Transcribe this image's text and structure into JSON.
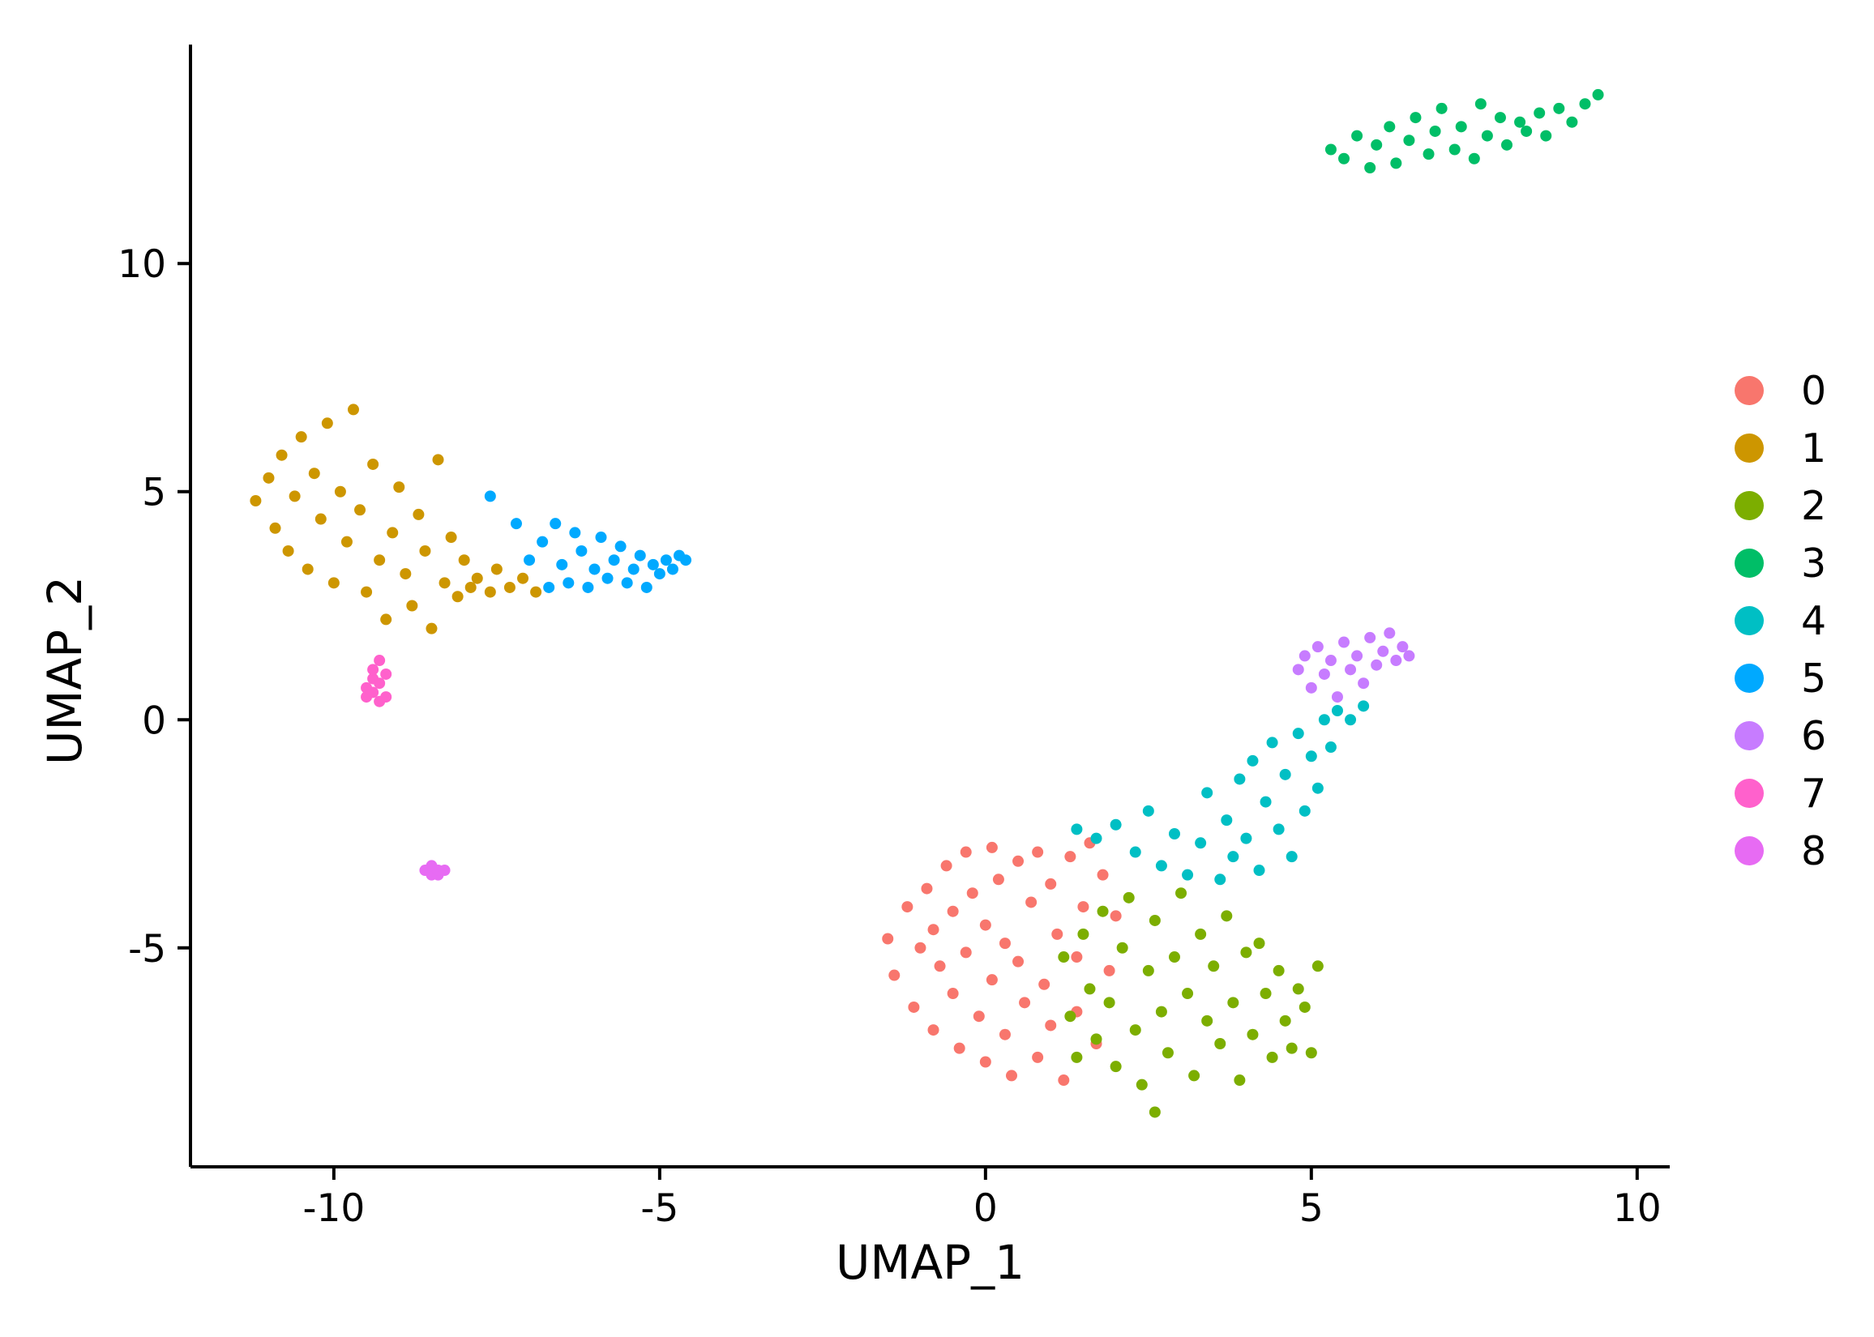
{
  "chart_data": {
    "type": "scatter",
    "title": "",
    "xlabel": "UMAP_1",
    "ylabel": "UMAP_2",
    "xlim": [
      -12.2,
      10.5
    ],
    "ylim": [
      -9.8,
      14.8
    ],
    "x_ticks": [
      -10,
      -5,
      0,
      5,
      10
    ],
    "y_ticks": [
      -5,
      0,
      5,
      10
    ],
    "x_tick_labels": [
      "-10",
      "-5",
      "0",
      "5",
      "10"
    ],
    "y_tick_labels": [
      "-5",
      "0",
      "5",
      "10"
    ],
    "grid": false,
    "legend_position": "right",
    "series": [
      {
        "name": "0",
        "color": "#F8766D",
        "points": [
          [
            -1.5,
            -4.8
          ],
          [
            -1.4,
            -5.6
          ],
          [
            -1.2,
            -4.1
          ],
          [
            -1.1,
            -6.3
          ],
          [
            -1.0,
            -5.0
          ],
          [
            -0.9,
            -3.7
          ],
          [
            -0.8,
            -4.6
          ],
          [
            -0.8,
            -6.8
          ],
          [
            -0.7,
            -5.4
          ],
          [
            -0.6,
            -3.2
          ],
          [
            -0.5,
            -4.2
          ],
          [
            -0.5,
            -6.0
          ],
          [
            -0.4,
            -7.2
          ],
          [
            -0.3,
            -2.9
          ],
          [
            -0.3,
            -5.1
          ],
          [
            -0.2,
            -3.8
          ],
          [
            -0.1,
            -6.5
          ],
          [
            0.0,
            -4.5
          ],
          [
            0.0,
            -7.5
          ],
          [
            0.1,
            -2.8
          ],
          [
            0.1,
            -5.7
          ],
          [
            0.2,
            -3.5
          ],
          [
            0.3,
            -6.9
          ],
          [
            0.3,
            -4.9
          ],
          [
            0.4,
            -7.8
          ],
          [
            0.5,
            -3.1
          ],
          [
            0.5,
            -5.3
          ],
          [
            0.6,
            -6.2
          ],
          [
            0.7,
            -4.0
          ],
          [
            0.8,
            -7.4
          ],
          [
            0.8,
            -2.9
          ],
          [
            0.9,
            -5.8
          ],
          [
            1.0,
            -3.6
          ],
          [
            1.0,
            -6.7
          ],
          [
            1.1,
            -4.7
          ],
          [
            1.2,
            -7.9
          ],
          [
            1.3,
            -3.0
          ],
          [
            1.4,
            -5.2
          ],
          [
            1.4,
            -6.4
          ],
          [
            1.5,
            -4.1
          ],
          [
            1.6,
            -2.7
          ],
          [
            1.7,
            -7.1
          ],
          [
            1.8,
            -3.4
          ],
          [
            1.9,
            -5.5
          ],
          [
            2.0,
            -4.3
          ]
        ]
      },
      {
        "name": "1",
        "color": "#CD9600",
        "points": [
          [
            -11.2,
            4.8
          ],
          [
            -11.0,
            5.3
          ],
          [
            -10.9,
            4.2
          ],
          [
            -10.8,
            5.8
          ],
          [
            -10.7,
            3.7
          ],
          [
            -10.6,
            4.9
          ],
          [
            -10.5,
            6.2
          ],
          [
            -10.4,
            3.3
          ],
          [
            -10.3,
            5.4
          ],
          [
            -10.2,
            4.4
          ],
          [
            -10.1,
            6.5
          ],
          [
            -10.0,
            3.0
          ],
          [
            -9.9,
            5.0
          ],
          [
            -9.8,
            3.9
          ],
          [
            -9.7,
            6.8
          ],
          [
            -9.6,
            4.6
          ],
          [
            -9.5,
            2.8
          ],
          [
            -9.4,
            5.6
          ],
          [
            -9.3,
            3.5
          ],
          [
            -9.2,
            2.2
          ],
          [
            -9.1,
            4.1
          ],
          [
            -9.0,
            5.1
          ],
          [
            -8.9,
            3.2
          ],
          [
            -8.8,
            2.5
          ],
          [
            -8.7,
            4.5
          ],
          [
            -8.6,
            3.7
          ],
          [
            -8.5,
            2.0
          ],
          [
            -8.4,
            5.7
          ],
          [
            -8.3,
            3.0
          ],
          [
            -8.2,
            4.0
          ],
          [
            -8.1,
            2.7
          ],
          [
            -8.0,
            3.5
          ],
          [
            -7.9,
            2.9
          ],
          [
            -7.8,
            3.1
          ],
          [
            -7.6,
            2.8
          ],
          [
            -7.5,
            3.3
          ],
          [
            -7.3,
            2.9
          ],
          [
            -7.1,
            3.1
          ],
          [
            -6.9,
            2.8
          ]
        ]
      },
      {
        "name": "2",
        "color": "#7CAE00",
        "points": [
          [
            1.2,
            -5.2
          ],
          [
            1.3,
            -6.5
          ],
          [
            1.4,
            -7.4
          ],
          [
            1.5,
            -4.7
          ],
          [
            1.6,
            -5.9
          ],
          [
            1.7,
            -7.0
          ],
          [
            1.8,
            -4.2
          ],
          [
            1.9,
            -6.2
          ],
          [
            2.0,
            -7.6
          ],
          [
            2.1,
            -5.0
          ],
          [
            2.2,
            -3.9
          ],
          [
            2.3,
            -6.8
          ],
          [
            2.4,
            -8.0
          ],
          [
            2.5,
            -5.5
          ],
          [
            2.6,
            -4.4
          ],
          [
            2.6,
            -8.6
          ],
          [
            2.7,
            -6.4
          ],
          [
            2.8,
            -7.3
          ],
          [
            2.9,
            -5.2
          ],
          [
            3.0,
            -3.8
          ],
          [
            3.1,
            -6.0
          ],
          [
            3.2,
            -7.8
          ],
          [
            3.3,
            -4.7
          ],
          [
            3.4,
            -6.6
          ],
          [
            3.5,
            -5.4
          ],
          [
            3.6,
            -7.1
          ],
          [
            3.7,
            -4.3
          ],
          [
            3.8,
            -6.2
          ],
          [
            3.9,
            -7.9
          ],
          [
            4.0,
            -5.1
          ],
          [
            4.1,
            -6.9
          ],
          [
            4.2,
            -4.9
          ],
          [
            4.3,
            -6.0
          ],
          [
            4.4,
            -7.4
          ],
          [
            4.5,
            -5.5
          ],
          [
            4.6,
            -6.6
          ],
          [
            4.7,
            -7.2
          ],
          [
            4.8,
            -5.9
          ],
          [
            4.9,
            -6.3
          ],
          [
            5.0,
            -7.3
          ],
          [
            5.1,
            -5.4
          ]
        ]
      },
      {
        "name": "3",
        "color": "#00BE67",
        "points": [
          [
            5.3,
            12.5
          ],
          [
            5.5,
            12.3
          ],
          [
            5.7,
            12.8
          ],
          [
            5.9,
            12.1
          ],
          [
            6.0,
            12.6
          ],
          [
            6.2,
            13.0
          ],
          [
            6.3,
            12.2
          ],
          [
            6.5,
            12.7
          ],
          [
            6.6,
            13.2
          ],
          [
            6.8,
            12.4
          ],
          [
            6.9,
            12.9
          ],
          [
            7.0,
            13.4
          ],
          [
            7.2,
            12.5
          ],
          [
            7.3,
            13.0
          ],
          [
            7.5,
            12.3
          ],
          [
            7.6,
            13.5
          ],
          [
            7.7,
            12.8
          ],
          [
            7.9,
            13.2
          ],
          [
            8.0,
            12.6
          ],
          [
            8.2,
            13.1
          ],
          [
            8.3,
            12.9
          ],
          [
            8.5,
            13.3
          ],
          [
            8.6,
            12.8
          ],
          [
            8.8,
            13.4
          ],
          [
            9.0,
            13.1
          ],
          [
            9.2,
            13.5
          ],
          [
            9.4,
            13.7
          ]
        ]
      },
      {
        "name": "4",
        "color": "#00BFC4",
        "points": [
          [
            1.4,
            -2.4
          ],
          [
            1.7,
            -2.6
          ],
          [
            2.0,
            -2.3
          ],
          [
            2.3,
            -2.9
          ],
          [
            2.5,
            -2.0
          ],
          [
            2.7,
            -3.2
          ],
          [
            2.9,
            -2.5
          ],
          [
            3.1,
            -3.4
          ],
          [
            3.3,
            -2.7
          ],
          [
            3.4,
            -1.6
          ],
          [
            3.6,
            -3.5
          ],
          [
            3.7,
            -2.2
          ],
          [
            3.8,
            -3.0
          ],
          [
            3.9,
            -1.3
          ],
          [
            4.0,
            -2.6
          ],
          [
            4.1,
            -0.9
          ],
          [
            4.2,
            -3.3
          ],
          [
            4.3,
            -1.8
          ],
          [
            4.4,
            -0.5
          ],
          [
            4.5,
            -2.4
          ],
          [
            4.6,
            -1.2
          ],
          [
            4.7,
            -3.0
          ],
          [
            4.8,
            -0.3
          ],
          [
            4.9,
            -2.0
          ],
          [
            5.0,
            -0.8
          ],
          [
            5.1,
            -1.5
          ],
          [
            5.2,
            0.0
          ],
          [
            5.3,
            -0.6
          ],
          [
            5.4,
            0.2
          ],
          [
            5.6,
            0.0
          ],
          [
            5.8,
            0.3
          ]
        ]
      },
      {
        "name": "5",
        "color": "#00A9FF",
        "points": [
          [
            -7.6,
            4.9
          ],
          [
            -7.2,
            4.3
          ],
          [
            -7.0,
            3.5
          ],
          [
            -6.8,
            3.9
          ],
          [
            -6.7,
            2.9
          ],
          [
            -6.6,
            4.3
          ],
          [
            -6.5,
            3.4
          ],
          [
            -6.4,
            3.0
          ],
          [
            -6.3,
            4.1
          ],
          [
            -6.2,
            3.7
          ],
          [
            -6.1,
            2.9
          ],
          [
            -6.0,
            3.3
          ],
          [
            -5.9,
            4.0
          ],
          [
            -5.8,
            3.1
          ],
          [
            -5.7,
            3.5
          ],
          [
            -5.6,
            3.8
          ],
          [
            -5.5,
            3.0
          ],
          [
            -5.4,
            3.3
          ],
          [
            -5.3,
            3.6
          ],
          [
            -5.2,
            2.9
          ],
          [
            -5.1,
            3.4
          ],
          [
            -5.0,
            3.2
          ],
          [
            -4.9,
            3.5
          ],
          [
            -4.8,
            3.3
          ],
          [
            -4.7,
            3.6
          ],
          [
            -4.6,
            3.5
          ]
        ]
      },
      {
        "name": "6",
        "color": "#C77CFF",
        "points": [
          [
            4.8,
            1.1
          ],
          [
            4.9,
            1.4
          ],
          [
            5.0,
            0.7
          ],
          [
            5.1,
            1.6
          ],
          [
            5.2,
            1.0
          ],
          [
            5.3,
            1.3
          ],
          [
            5.4,
            0.5
          ],
          [
            5.5,
            1.7
          ],
          [
            5.6,
            1.1
          ],
          [
            5.7,
            1.4
          ],
          [
            5.8,
            0.8
          ],
          [
            5.9,
            1.8
          ],
          [
            6.0,
            1.2
          ],
          [
            6.1,
            1.5
          ],
          [
            6.2,
            1.9
          ],
          [
            6.3,
            1.3
          ],
          [
            6.4,
            1.6
          ],
          [
            6.5,
            1.4
          ]
        ]
      },
      {
        "name": "7",
        "color": "#FF61CC",
        "points": [
          [
            -9.5,
            0.5
          ],
          [
            -9.5,
            0.7
          ],
          [
            -9.4,
            0.9
          ],
          [
            -9.4,
            0.6
          ],
          [
            -9.4,
            1.1
          ],
          [
            -9.3,
            0.8
          ],
          [
            -9.3,
            1.3
          ],
          [
            -9.3,
            0.4
          ],
          [
            -9.2,
            0.5
          ],
          [
            -9.2,
            1.0
          ]
        ]
      },
      {
        "name": "8",
        "color": "#E76BF3",
        "points": [
          [
            -8.6,
            -3.3
          ],
          [
            -8.5,
            -3.4
          ],
          [
            -8.5,
            -3.2
          ],
          [
            -8.4,
            -3.4
          ],
          [
            -8.4,
            -3.3
          ],
          [
            -8.3,
            -3.3
          ]
        ]
      }
    ]
  }
}
